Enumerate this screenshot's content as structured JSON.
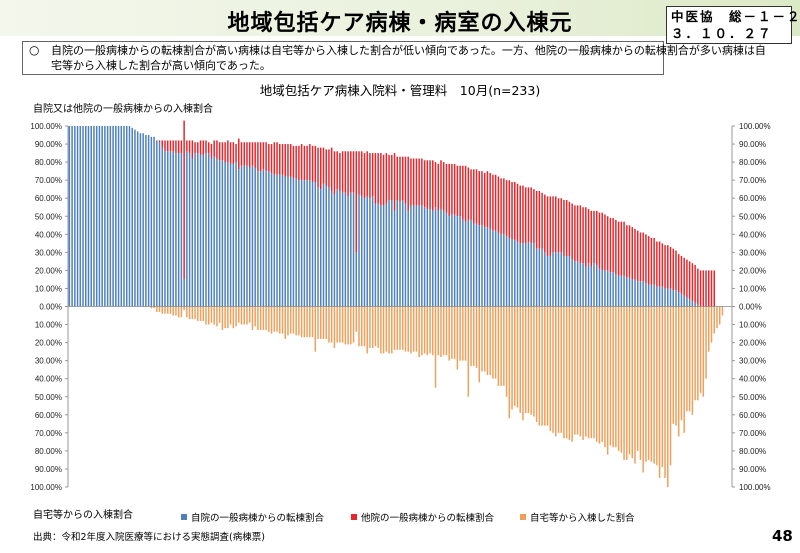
{
  "header": {
    "title": "地域包括ケア病棟・病室の入棟元",
    "doc_id_line1": "中医協　総－１－２",
    "doc_id_line2": "３．１０．２７"
  },
  "summary": {
    "bullet": "○",
    "text": "自院の一般病棟からの転棟割合が高い病棟は自宅等から入棟した割合が低い傾向であった。一方、他院の一般病棟からの転棟割合が多い病棟は自宅等から入棟した割合が高い傾向であった。"
  },
  "footer": {
    "source": "出典：令和2年度入院医療等における実態調査(病棟票)",
    "page_number": "48"
  },
  "colors": {
    "own": "#4f81bd",
    "other": "#e8262c",
    "home": "#f0a05a"
  },
  "chart_data": {
    "type": "bar",
    "title": "地域包括ケア病棟入院料・管理料　10月(n=233)",
    "ylabel_upper": "自院又は他院の一般病棟からの入棟割合",
    "ylabel_lower": "自宅等からの入棟割合",
    "ylim": [
      -100,
      100
    ],
    "yticks": [
      "100.00%",
      "90.00%",
      "80.00%",
      "70.00%",
      "60.00%",
      "50.00%",
      "40.00%",
      "30.00%",
      "20.00%",
      "10.00%",
      "0.00%",
      "10.00%",
      "20.00%",
      "30.00%",
      "40.00%",
      "50.00%",
      "60.00%",
      "70.00%",
      "80.00%",
      "90.00%",
      "100.00%"
    ],
    "series": [
      {
        "name": "自院の一般病棟からの転棟割合",
        "color": "#4f81bd",
        "stack": "upper",
        "values": [
          100,
          100,
          100,
          100,
          100,
          100,
          100,
          100,
          100,
          100,
          100,
          100,
          100,
          100,
          100,
          100,
          100,
          100,
          100,
          100,
          100,
          100,
          100,
          99,
          98,
          97,
          96,
          96,
          95,
          95,
          94,
          94,
          92,
          91,
          88,
          86,
          86,
          86,
          86,
          85,
          85,
          85,
          15,
          86,
          85,
          82,
          85,
          85,
          84,
          84,
          85,
          85,
          82,
          83,
          82,
          81,
          81,
          80,
          80,
          79,
          79,
          80,
          76,
          78,
          78,
          78,
          77,
          78,
          77,
          75,
          75,
          76,
          75,
          75,
          74,
          73,
          73,
          73,
          73,
          72,
          72,
          72,
          71,
          71,
          70,
          70,
          70,
          70,
          70,
          69,
          69,
          66,
          65,
          68,
          67,
          66,
          64,
          62,
          65,
          64,
          63,
          63,
          61,
          63,
          63,
          30,
          62,
          61,
          60,
          61,
          60,
          61,
          57,
          57,
          56,
          56,
          57,
          59,
          59,
          53,
          59,
          58,
          59,
          57,
          53,
          56,
          56,
          56,
          56,
          56,
          55,
          54,
          54,
          53,
          55,
          53,
          54,
          53,
          52,
          50,
          51,
          51,
          50,
          50,
          48,
          47,
          48,
          48,
          46,
          46,
          45,
          45,
          44,
          44,
          43,
          42,
          42,
          41,
          40,
          40,
          39,
          38,
          37,
          37,
          36,
          35,
          35,
          35,
          36,
          35,
          35,
          32,
          32,
          32,
          30,
          28,
          28,
          30,
          30,
          30,
          30,
          28,
          28,
          28,
          26,
          25,
          25,
          24,
          24,
          22,
          24,
          22,
          24,
          23,
          21,
          20,
          20,
          20,
          19,
          19,
          18,
          17,
          17,
          17,
          16,
          16,
          15,
          15,
          14,
          14,
          14,
          13,
          12,
          12,
          12,
          11,
          11,
          11,
          10,
          10,
          10,
          9,
          9,
          8,
          7,
          6,
          5,
          4,
          3,
          2,
          1,
          0,
          0,
          0,
          0,
          0,
          0,
          0,
          0,
          0,
          0,
          0,
          0
        ]
      },
      {
        "name": "他院の一般病棟からの転棟割合",
        "color": "#e8262c",
        "stack": "upper",
        "values": [
          0,
          0,
          0,
          0,
          0,
          0,
          0,
          0,
          0,
          0,
          0,
          0,
          0,
          0,
          0,
          0,
          0,
          0,
          0,
          0,
          0,
          0,
          0,
          0,
          0,
          0,
          0,
          0,
          0,
          0,
          0,
          0,
          0,
          1,
          4,
          6,
          6,
          6,
          6,
          7,
          7,
          7,
          88,
          6,
          7,
          10,
          6,
          6,
          8,
          8,
          7,
          6,
          8,
          9,
          10,
          10,
          10,
          11,
          12,
          12,
          12,
          10,
          17,
          13,
          13,
          13,
          14,
          13,
          14,
          16,
          16,
          15,
          16,
          15,
          16,
          18,
          18,
          17,
          17,
          18,
          18,
          18,
          18,
          18,
          19,
          20,
          19,
          19,
          20,
          20,
          20,
          22,
          23,
          20,
          20,
          21,
          24,
          24,
          21,
          21,
          23,
          23,
          25,
          23,
          23,
          56,
          24,
          25,
          25,
          25,
          25,
          24,
          28,
          28,
          29,
          28,
          28,
          25,
          25,
          32,
          24,
          25,
          24,
          26,
          30,
          26,
          26,
          26,
          26,
          26,
          26,
          27,
          27,
          28,
          25,
          26,
          27,
          27,
          27,
          29,
          28,
          28,
          28,
          28,
          30,
          31,
          29,
          28,
          30,
          30,
          30,
          30,
          30,
          31,
          31,
          31,
          31,
          31,
          31,
          31,
          31,
          32,
          32,
          32,
          32,
          32,
          32,
          31,
          30,
          31,
          30,
          32,
          32,
          31,
          32,
          33,
          33,
          31,
          31,
          30,
          30,
          31,
          31,
          30,
          31,
          31,
          31,
          32,
          31,
          33,
          30,
          31,
          29,
          30,
          31,
          32,
          31,
          30,
          30,
          30,
          30,
          30,
          30,
          30,
          29,
          29,
          29,
          28,
          28,
          27,
          27,
          27,
          27,
          26,
          26,
          25,
          25,
          24,
          24,
          24,
          23,
          23,
          22,
          21,
          21,
          21,
          21,
          21,
          21,
          21,
          20,
          20,
          20,
          20,
          20,
          20,
          20,
          0,
          0,
          0,
          0,
          0,
          0,
          0,
          0,
          0,
          0,
          0,
          0
        ]
      },
      {
        "name": "自宅等から入棟した割合",
        "color": "#f0a05a",
        "stack": "lower",
        "values": [
          0,
          0,
          0,
          0,
          0,
          0,
          0,
          0,
          0,
          0,
          0,
          0,
          0,
          0,
          0,
          0,
          0,
          0,
          0,
          0,
          0,
          0,
          0,
          0,
          0,
          0,
          0,
          0,
          0,
          0,
          1,
          1,
          3,
          3,
          4,
          4,
          4,
          4,
          5,
          5,
          6,
          6,
          2,
          6,
          7,
          7,
          7,
          8,
          8,
          8,
          10,
          10,
          9,
          10,
          11,
          9,
          13,
          12,
          12,
          10,
          12,
          11,
          9,
          10,
          10,
          10,
          9,
          13,
          11,
          13,
          13,
          13,
          13,
          14,
          15,
          14,
          14,
          15,
          15,
          18,
          16,
          15,
          15,
          16,
          16,
          17,
          17,
          17,
          17,
          17,
          25,
          18,
          18,
          18,
          18,
          20,
          20,
          23,
          20,
          20,
          20,
          21,
          21,
          21,
          20,
          14,
          22,
          22,
          22,
          26,
          23,
          23,
          22,
          23,
          26,
          26,
          25,
          26,
          26,
          24,
          24,
          24,
          24,
          25,
          25,
          26,
          25,
          25,
          28,
          27,
          26,
          27,
          26,
          27,
          45,
          27,
          28,
          27,
          27,
          30,
          29,
          29,
          35,
          30,
          30,
          30,
          50,
          33,
          33,
          34,
          42,
          36,
          36,
          38,
          38,
          40,
          40,
          44,
          44,
          44,
          50,
          62,
          57,
          55,
          56,
          59,
          63,
          59,
          59,
          60,
          61,
          64,
          66,
          66,
          66,
          66,
          69,
          70,
          72,
          70,
          70,
          73,
          73,
          74,
          75,
          71,
          71,
          72,
          74,
          72,
          73,
          73,
          73,
          75,
          76,
          75,
          78,
          82,
          77,
          78,
          78,
          80,
          81,
          85,
          85,
          82,
          84,
          87,
          80,
          85,
          92,
          86,
          85,
          86,
          87,
          88,
          95,
          89,
          95,
          100,
          88,
          65,
          66,
          72,
          63,
          70,
          58,
          58,
          60,
          52,
          52,
          48,
          50,
          40,
          25,
          20,
          15,
          12,
          10,
          5,
          0,
          0,
          0,
          0
        ]
      }
    ],
    "legend": [
      "自院の一般病棟からの転棟割合",
      "他院の一般病棟からの転棟割合",
      "自宅等から入棟した割合"
    ]
  }
}
